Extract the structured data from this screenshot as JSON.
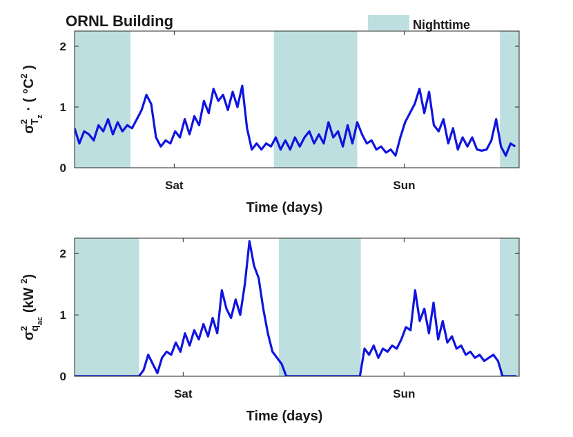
{
  "chart_data": [
    {
      "type": "line",
      "title": "ORNL Building",
      "legend": {
        "label": "Nighttime",
        "color": "#bddfdf",
        "position": "top"
      },
      "band_color": "#bddfdf",
      "nighttime": [
        [
          0,
          5.84
        ],
        [
          20.8,
          29.5
        ],
        [
          44.4,
          46.4
        ]
      ],
      "xlabel": "Time (days)",
      "ylabel": [
        "σ",
        "2",
        "T",
        "z",
        " · ( °C",
        "2",
        " )"
      ],
      "xlim": [
        0,
        46.4
      ],
      "xticks": [
        {
          "value": 10.4,
          "label": "Sat"
        },
        {
          "value": 34.4,
          "label": "Sun"
        }
      ],
      "ylim": [
        0,
        2.25
      ],
      "yticks": [
        0,
        1,
        2
      ],
      "color": "#0f14e0",
      "x": [
        0,
        0.5,
        1,
        1.5,
        2,
        2.5,
        3,
        3.5,
        4,
        4.5,
        5,
        5.5,
        6,
        6.5,
        7,
        7.5,
        8,
        8.5,
        9,
        9.5,
        10,
        10.5,
        11,
        11.5,
        12,
        12.5,
        13,
        13.5,
        14,
        14.5,
        15,
        15.5,
        16,
        16.5,
        17,
        17.5,
        18,
        18.5,
        19,
        19.5,
        20,
        20.5,
        21,
        21.5,
        22,
        22.5,
        23,
        23.5,
        24,
        24.5,
        25,
        25.5,
        26,
        26.5,
        27,
        27.5,
        28,
        28.5,
        29,
        29.5,
        30,
        30.5,
        31,
        31.5,
        32,
        32.5,
        33,
        33.5,
        34,
        34.5,
        35,
        35.5,
        36,
        36.5,
        37,
        37.5,
        38,
        38.5,
        39,
        39.5,
        40,
        40.5,
        41,
        41.5,
        42,
        42.5,
        43,
        43.5,
        44,
        44.5,
        45,
        45.5,
        46
      ],
      "values": [
        0.65,
        0.4,
        0.6,
        0.55,
        0.45,
        0.7,
        0.6,
        0.8,
        0.55,
        0.75,
        0.6,
        0.7,
        0.65,
        0.8,
        0.95,
        1.2,
        1.05,
        0.5,
        0.35,
        0.45,
        0.4,
        0.6,
        0.5,
        0.8,
        0.55,
        0.85,
        0.7,
        1.1,
        0.9,
        1.3,
        1.1,
        1.2,
        0.95,
        1.25,
        1.0,
        1.35,
        0.65,
        0.3,
        0.4,
        0.3,
        0.4,
        0.35,
        0.5,
        0.3,
        0.45,
        0.3,
        0.5,
        0.35,
        0.5,
        0.6,
        0.4,
        0.55,
        0.4,
        0.75,
        0.5,
        0.6,
        0.35,
        0.7,
        0.4,
        0.75,
        0.55,
        0.4,
        0.45,
        0.3,
        0.35,
        0.25,
        0.3,
        0.2,
        0.5,
        0.75,
        0.9,
        1.05,
        1.3,
        0.9,
        1.25,
        0.7,
        0.6,
        0.8,
        0.4,
        0.65,
        0.3,
        0.5,
        0.35,
        0.5,
        0.3,
        0.28,
        0.3,
        0.45,
        0.8,
        0.35,
        0.2,
        0.4,
        0.35
      ]
    },
    {
      "type": "line",
      "band_color": "#bddfdf",
      "nighttime": [
        [
          0,
          7.0
        ],
        [
          22.2,
          31.1
        ],
        [
          46.2,
          48.3
        ]
      ],
      "xlabel": "Time (days)",
      "ylabel": [
        "σ",
        "2",
        "q",
        "ac",
        "  (kW ",
        "2",
        ")"
      ],
      "xlim": [
        0,
        48.3
      ],
      "xticks": [
        {
          "value": 11.8,
          "label": "Sat"
        },
        {
          "value": 35.8,
          "label": "Sun"
        }
      ],
      "ylim": [
        0,
        2.25
      ],
      "yticks": [
        0,
        1,
        2
      ],
      "color": "#0f14e0",
      "x": [
        0,
        0.5,
        1,
        1.5,
        2,
        2.5,
        3,
        3.5,
        4,
        4.5,
        5,
        5.5,
        6,
        6.5,
        7,
        7.5,
        8,
        8.5,
        9,
        9.5,
        10,
        10.5,
        11,
        11.5,
        12,
        12.5,
        13,
        13.5,
        14,
        14.5,
        15,
        15.5,
        16,
        16.5,
        17,
        17.5,
        18,
        18.5,
        19,
        19.5,
        20,
        20.5,
        21,
        21.5,
        22,
        22.5,
        23,
        23.5,
        24,
        24.5,
        25,
        25.5,
        26,
        26.5,
        27,
        27.5,
        28,
        28.5,
        29,
        29.5,
        30,
        30.5,
        31,
        31.5,
        32,
        32.5,
        33,
        33.5,
        34,
        34.5,
        35,
        35.5,
        36,
        36.5,
        37,
        37.5,
        38,
        38.5,
        39,
        39.5,
        40,
        40.5,
        41,
        41.5,
        42,
        42.5,
        43,
        43.5,
        44,
        44.5,
        45,
        45.5,
        46,
        46.5,
        47,
        47.5,
        48
      ],
      "values": [
        0,
        0,
        0,
        0,
        0,
        0,
        0,
        0,
        0,
        0,
        0,
        0,
        0,
        0,
        0,
        0.1,
        0.35,
        0.2,
        0.05,
        0.3,
        0.4,
        0.35,
        0.55,
        0.4,
        0.7,
        0.5,
        0.75,
        0.6,
        0.85,
        0.65,
        0.95,
        0.7,
        1.4,
        1.1,
        0.95,
        1.25,
        1.0,
        1.5,
        2.2,
        1.8,
        1.6,
        1.1,
        0.7,
        0.4,
        0.3,
        0.2,
        0,
        0,
        0,
        0,
        0,
        0,
        0,
        0,
        0,
        0,
        0,
        0,
        0,
        0,
        0,
        0,
        0,
        0.45,
        0.35,
        0.5,
        0.3,
        0.45,
        0.4,
        0.5,
        0.45,
        0.6,
        0.8,
        0.75,
        1.4,
        0.9,
        1.1,
        0.7,
        1.2,
        0.6,
        0.9,
        0.55,
        0.65,
        0.45,
        0.5,
        0.35,
        0.4,
        0.3,
        0.35,
        0.25,
        0.3,
        0.35,
        0.25,
        0,
        0,
        0,
        0
      ]
    }
  ]
}
